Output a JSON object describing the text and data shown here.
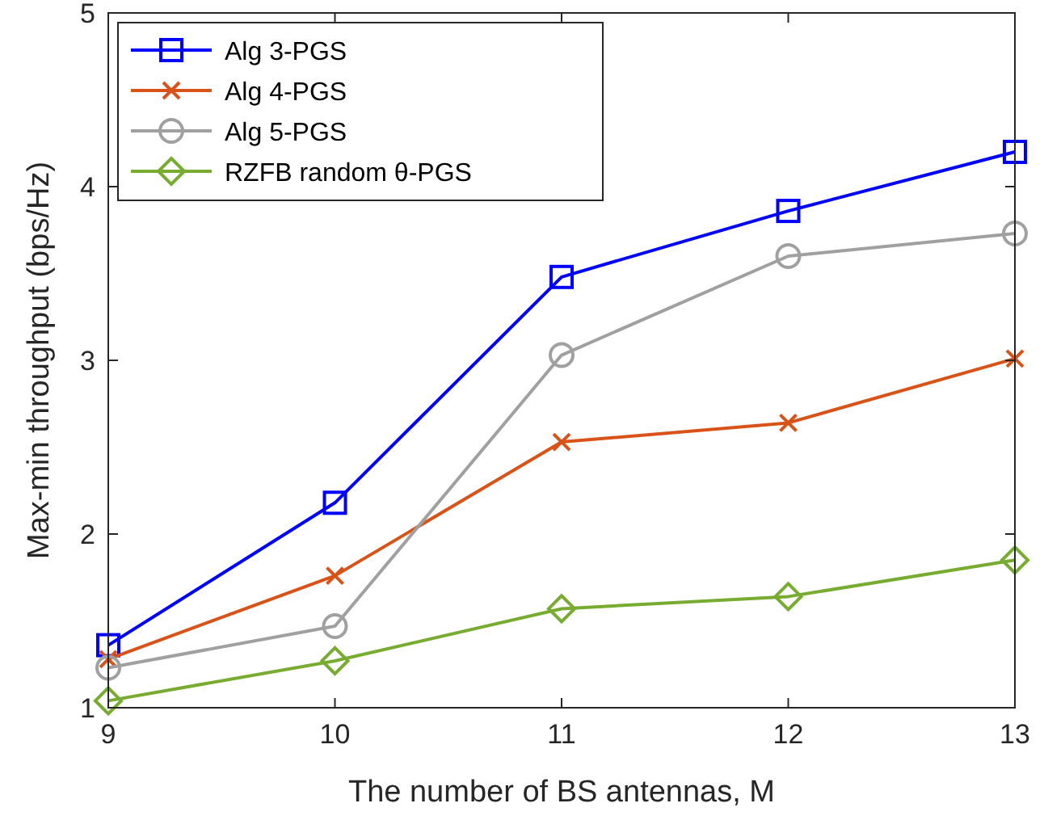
{
  "chart_data": {
    "type": "line",
    "xlabel": "The number of BS antennas, M",
    "ylabel": "Max-min throughput (bps/Hz)",
    "x": [
      9,
      10,
      11,
      12,
      13
    ],
    "xlim": [
      9,
      13
    ],
    "xticks": [
      9,
      10,
      11,
      12,
      13
    ],
    "ylim": [
      1,
      5
    ],
    "yticks": [
      1,
      2,
      3,
      4,
      5
    ],
    "grid": false,
    "legend": "top left",
    "line_style": "solid",
    "series": [
      {
        "name": "Alg 3-PGS",
        "color": "#0000ff",
        "marker": "square",
        "values": [
          1.36,
          2.18,
          3.48,
          3.86,
          4.2
        ]
      },
      {
        "name": "Alg 4-PGS",
        "color": "#d95319",
        "marker": "cross",
        "values": [
          1.28,
          1.76,
          2.53,
          2.64,
          3.01
        ]
      },
      {
        "name": "Alg 5-PGS",
        "color": "#a0a0a0",
        "marker": "circle",
        "values": [
          1.23,
          1.47,
          3.03,
          3.6,
          3.73
        ]
      },
      {
        "name": "RZFB random θ-PGS",
        "color": "#77ac30",
        "marker": "diamond",
        "values": [
          1.04,
          1.27,
          1.57,
          1.64,
          1.85
        ]
      }
    ]
  }
}
